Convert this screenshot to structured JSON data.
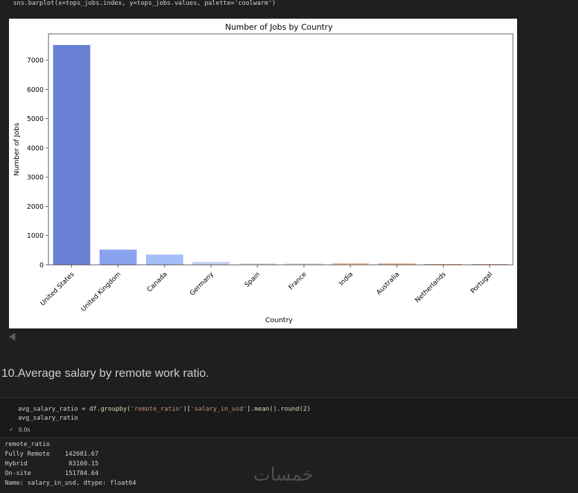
{
  "code_top": "sns.barplot(x=tops_jobs.index, y=tops_jobs.values, palette='coolwarm')",
  "chart_data": {
    "type": "bar",
    "title": "Number of Jobs by Country",
    "xlabel": "Country",
    "ylabel": "Number of Jobs",
    "categories": [
      "United States",
      "United Kingdom",
      "Canada",
      "Germany",
      "Spain",
      "France",
      "India",
      "Australia",
      "Netherlands",
      "Portugal"
    ],
    "values": [
      7520,
      520,
      350,
      100,
      50,
      50,
      60,
      50,
      25,
      20
    ],
    "colors": [
      "#6a80d5",
      "#8aa3ee",
      "#a4bef8",
      "#c1d3f3",
      "#d6dbe4",
      "#e7d8cf",
      "#f0c1a7",
      "#f1ad90",
      "#dd8a69",
      "#c6704f"
    ],
    "ylim": [
      0,
      7900
    ],
    "yticks": [
      0,
      1000,
      2000,
      3000,
      4000,
      5000,
      6000,
      7000
    ]
  },
  "markdown_heading": "10.Average salary by remote work ratio.",
  "cell": {
    "line1_var": "avg_salary_ratio = df.",
    "line1_groupby": "groupby",
    "line1_open": "(",
    "line1_str1": "'remote_ratio'",
    "line1_mid": ")[",
    "line1_str2": "'salary_in_usd'",
    "line1_end1": "].",
    "line1_mean": "mean",
    "line1_end2": "().",
    "line1_round": "round",
    "line1_end3": "(2)",
    "line2": "avg_salary_ratio",
    "check": "✓",
    "time": "0.0s"
  },
  "output": [
    "remote_ratio",
    "Fully Remote    142681.67",
    "Hybrid           83160.15",
    "On-site         151784.64",
    "Name: salary_in_usd, dtype: float64"
  ],
  "watermark": "خمسات"
}
